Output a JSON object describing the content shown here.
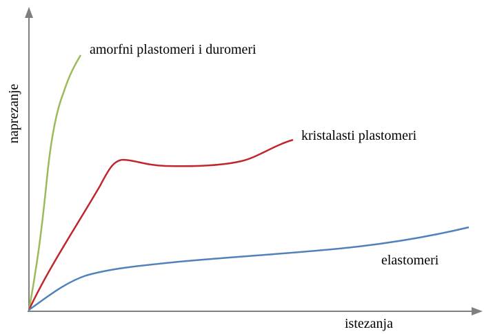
{
  "axes": {
    "y_label": "naprezanje",
    "x_label": "istezanja"
  },
  "curves": [
    {
      "label": "amorfni plastomeri i duromeri"
    },
    {
      "label": "kristalasti plastomeri"
    },
    {
      "label": "elastomeri"
    }
  ]
}
